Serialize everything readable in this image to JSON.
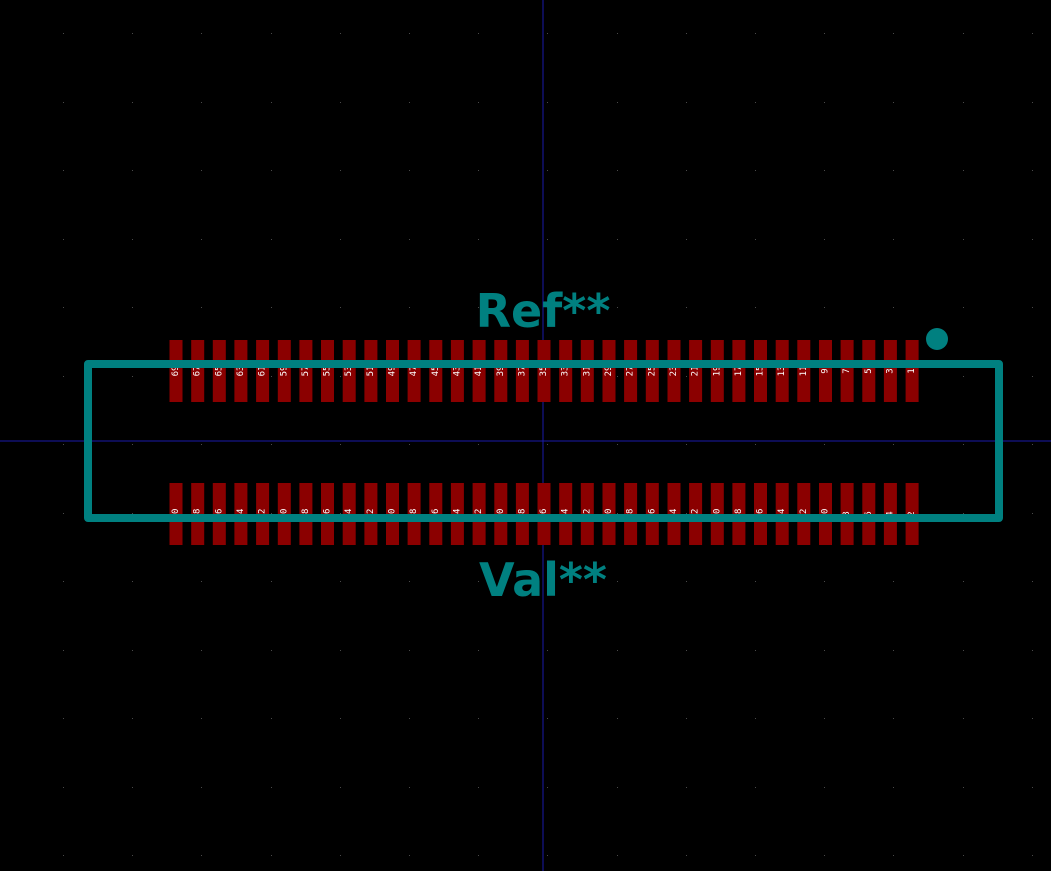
{
  "footprint": {
    "reference": "Ref**",
    "value": "Val**"
  },
  "pads": {
    "top_row": [
      "69",
      "67",
      "65",
      "63",
      "61",
      "59",
      "57",
      "55",
      "53",
      "51",
      "49",
      "47",
      "45",
      "43",
      "41",
      "39",
      "37",
      "35",
      "33",
      "31",
      "29",
      "27",
      "25",
      "23",
      "21",
      "19",
      "17",
      "15",
      "13",
      "11",
      "9",
      "7",
      "5",
      "3",
      "1"
    ],
    "bottom_row": [
      "70",
      "68",
      "66",
      "64",
      "62",
      "60",
      "58",
      "56",
      "54",
      "52",
      "50",
      "48",
      "46",
      "44",
      "42",
      "40",
      "38",
      "36",
      "34",
      "32",
      "30",
      "28",
      "26",
      "24",
      "22",
      "20",
      "18",
      "16",
      "14",
      "12",
      "10",
      "8",
      "6",
      "4",
      "2"
    ]
  },
  "colors": {
    "background": "#000000",
    "pad": "#8b0000",
    "pad_number": "#ffffff",
    "silkscreen": "#008080",
    "crosshair": "#1a1aaa",
    "grid_dot": "#4a4a4a"
  }
}
